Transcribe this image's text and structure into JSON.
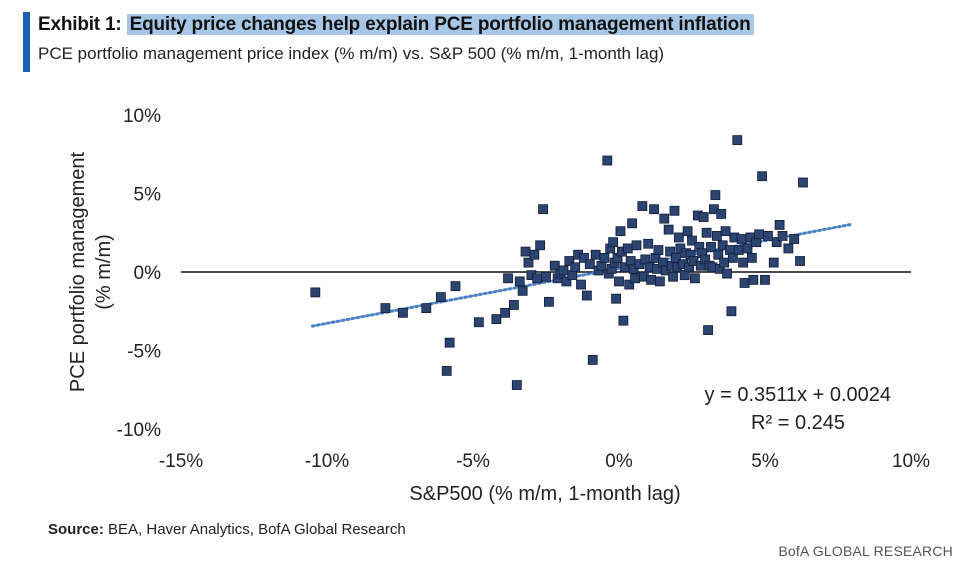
{
  "header": {
    "exhibit_label": "Exhibit 1:",
    "title": "Equity price changes help explain PCE portfolio management inflation",
    "subtitle": "PCE portfolio management price index (% m/m) vs. S&P 500 (% m/m, 1-month lag)"
  },
  "footer": {
    "source_label": "Source:",
    "source_text": "BEA, Haver Analytics, BofA Global Research",
    "brand": "BofA GLOBAL RESEARCH"
  },
  "colors": {
    "accent": "#1f5fb0",
    "highlight": "#a8c7e6",
    "marker_fill": "#2d4470",
    "marker_stroke": "#0f1c38",
    "trendline": "#4a82c4"
  },
  "chart_data": {
    "type": "scatter",
    "title": "Equity price changes help explain PCE portfolio management inflation",
    "xlabel": "S&P500 (% m/m, 1-month lag)",
    "ylabel_lines": [
      "PCE portfolio management",
      "(% m/m)"
    ],
    "xlim": [
      -15,
      10
    ],
    "ylim": [
      -10,
      10
    ],
    "x_ticks": [
      -15,
      -10,
      -5,
      0,
      5,
      10
    ],
    "x_tick_labels": [
      "-15%",
      "-10%",
      "-5%",
      "0%",
      "5%",
      "10%"
    ],
    "y_ticks": [
      10,
      5,
      0,
      -5,
      -10
    ],
    "y_tick_labels": [
      "10%",
      "5%",
      "0%",
      "-5%",
      "-10%"
    ],
    "trendline": {
      "slope": 0.3511,
      "intercept": 0.24,
      "x_range": [
        -10.5,
        8
      ]
    },
    "equation_lines": [
      "y = 0.3511x + 0.0024",
      "R² = 0.245"
    ],
    "points": [
      [
        -10.4,
        -1.3
      ],
      [
        -8,
        -2.3
      ],
      [
        -7.4,
        -2.6
      ],
      [
        -6.6,
        -2.3
      ],
      [
        -6.1,
        -1.6
      ],
      [
        -5.9,
        -6.3
      ],
      [
        -5.8,
        -4.5
      ],
      [
        -5.6,
        -0.9
      ],
      [
        -4.8,
        -3.2
      ],
      [
        -4.2,
        -3
      ],
      [
        -3.9,
        -2.6
      ],
      [
        -3.8,
        -0.4
      ],
      [
        -3.6,
        -2.1
      ],
      [
        -3.5,
        -7.2
      ],
      [
        -3.4,
        -0.6
      ],
      [
        -3.3,
        -1.2
      ],
      [
        -3.2,
        1.3
      ],
      [
        -3.1,
        0.6
      ],
      [
        -3,
        -0.2
      ],
      [
        -2.9,
        1.1
      ],
      [
        -2.8,
        -0.4
      ],
      [
        -2.7,
        1.7
      ],
      [
        -2.6,
        4
      ],
      [
        -2.5,
        -0.3
      ],
      [
        -2.4,
        -1.9
      ],
      [
        -2.2,
        0.4
      ],
      [
        -2.1,
        -0.4
      ],
      [
        -2,
        -0.1
      ],
      [
        -1.9,
        0.1
      ],
      [
        -1.8,
        -0.6
      ],
      [
        -1.7,
        0.7
      ],
      [
        -1.6,
        -0.2
      ],
      [
        -1.5,
        0.3
      ],
      [
        -1.4,
        1.1
      ],
      [
        -1.3,
        -0.8
      ],
      [
        -1.2,
        0.9
      ],
      [
        -1.1,
        -1.5
      ],
      [
        -1,
        0.5
      ],
      [
        -0.9,
        -5.6
      ],
      [
        -0.8,
        1.1
      ],
      [
        -0.7,
        0.1
      ],
      [
        -0.6,
        0.4
      ],
      [
        -0.5,
        0.9
      ],
      [
        -0.4,
        7.1
      ],
      [
        -0.35,
        -0.1
      ],
      [
        -0.3,
        1.5
      ],
      [
        -0.25,
        0.2
      ],
      [
        -0.2,
        1.9
      ],
      [
        -0.15,
        0.6
      ],
      [
        -0.1,
        -1.7
      ],
      [
        -0.05,
        0.9
      ],
      [
        0,
        -0.6
      ],
      [
        0.05,
        2.6
      ],
      [
        0.1,
        1.3
      ],
      [
        0.15,
        -3.1
      ],
      [
        0.2,
        0.3
      ],
      [
        0.3,
        1.5
      ],
      [
        0.35,
        -0.8
      ],
      [
        0.4,
        0.7
      ],
      [
        0.45,
        3.1
      ],
      [
        0.5,
        0.2
      ],
      [
        0.55,
        -0.4
      ],
      [
        0.6,
        1.7
      ],
      [
        0.7,
        0.5
      ],
      [
        0.8,
        4.2
      ],
      [
        0.85,
        -0.3
      ],
      [
        0.9,
        0.8
      ],
      [
        1,
        1.8
      ],
      [
        1.05,
        0.3
      ],
      [
        1.1,
        -0.5
      ],
      [
        1.2,
        4
      ],
      [
        1.25,
        0.9
      ],
      [
        1.3,
        0.2
      ],
      [
        1.35,
        1.4
      ],
      [
        1.4,
        -0.6
      ],
      [
        1.5,
        0.6
      ],
      [
        1.55,
        3.4
      ],
      [
        1.6,
        0.1
      ],
      [
        1.7,
        2.7
      ],
      [
        1.75,
        1.3
      ],
      [
        1.8,
        0.4
      ],
      [
        1.85,
        -0.3
      ],
      [
        1.9,
        3.9
      ],
      [
        1.95,
        0.9
      ],
      [
        2,
        0.3
      ],
      [
        2.05,
        2.2
      ],
      [
        2.1,
        1.5
      ],
      [
        2.2,
        0.5
      ],
      [
        2.25,
        -0.2
      ],
      [
        2.3,
        1.2
      ],
      [
        2.35,
        2.6
      ],
      [
        2.4,
        0.3
      ],
      [
        2.45,
        1.1
      ],
      [
        2.5,
        2
      ],
      [
        2.55,
        0.7
      ],
      [
        2.6,
        -0.4
      ],
      [
        2.7,
        3.6
      ],
      [
        2.75,
        1.6
      ],
      [
        2.8,
        0.4
      ],
      [
        2.85,
        1.2
      ],
      [
        2.9,
        3.5
      ],
      [
        2.95,
        0.8
      ],
      [
        3,
        2.5
      ],
      [
        3.05,
        -3.7
      ],
      [
        3.1,
        0.4
      ],
      [
        3.15,
        1.6
      ],
      [
        3.2,
        0.3
      ],
      [
        3.25,
        4
      ],
      [
        3.3,
        4.9
      ],
      [
        3.35,
        2.3
      ],
      [
        3.4,
        1.1
      ],
      [
        3.45,
        0.2
      ],
      [
        3.5,
        3.7
      ],
      [
        3.55,
        1.7
      ],
      [
        3.6,
        0.6
      ],
      [
        3.65,
        2.6
      ],
      [
        3.7,
        -0.1
      ],
      [
        3.8,
        1.4
      ],
      [
        3.85,
        -2.5
      ],
      [
        3.9,
        0.9
      ],
      [
        3.95,
        2.2
      ],
      [
        4.05,
        8.4
      ],
      [
        4.1,
        1.4
      ],
      [
        4.2,
        2.1
      ],
      [
        4.25,
        0.6
      ],
      [
        4.3,
        -0.7
      ],
      [
        4.4,
        1.5
      ],
      [
        4.5,
        2.2
      ],
      [
        4.55,
        0.9
      ],
      [
        4.6,
        -0.5
      ],
      [
        4.7,
        1.9
      ],
      [
        4.8,
        2.4
      ],
      [
        4.9,
        6.1
      ],
      [
        5,
        -0.5
      ],
      [
        5.1,
        2.3
      ],
      [
        5.3,
        0.6
      ],
      [
        5.4,
        1.9
      ],
      [
        5.5,
        3
      ],
      [
        5.6,
        2.3
      ],
      [
        5.8,
        1.5
      ],
      [
        6,
        2.1
      ],
      [
        6.2,
        0.7
      ],
      [
        6.3,
        5.7
      ]
    ]
  }
}
